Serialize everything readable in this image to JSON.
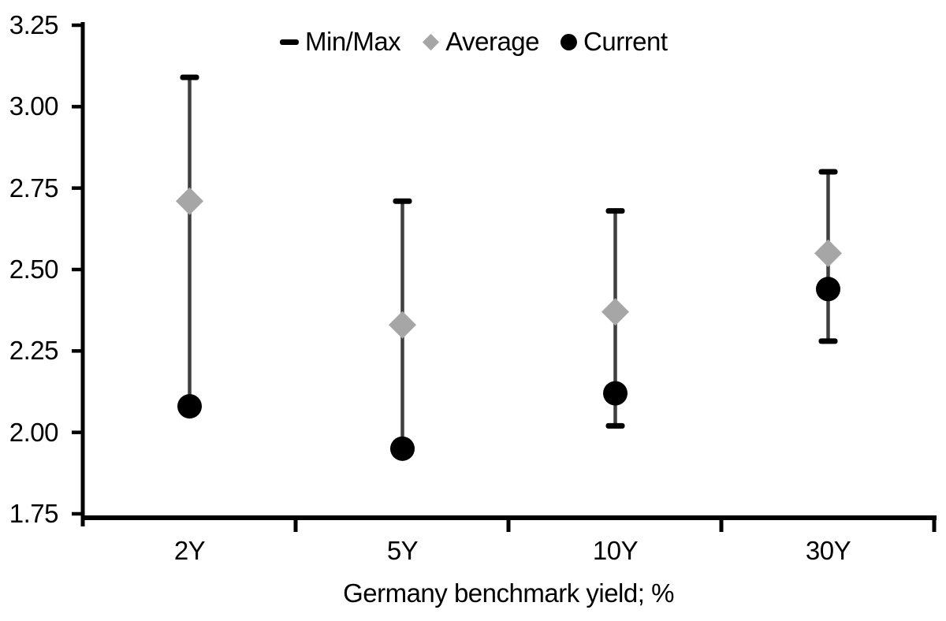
{
  "chart_data": {
    "type": "scatter",
    "subtype": "min-max-range",
    "title": "",
    "xlabel": "Germany benchmark yield; %",
    "ylabel": "",
    "ylim": [
      1.75,
      3.25
    ],
    "y_tick_step": 0.25,
    "y_ticks": [
      3.25,
      3.0,
      2.75,
      2.5,
      2.25,
      2.0,
      1.75
    ],
    "y_tick_labels": [
      "3.25",
      "3.00",
      "2.75",
      "2.50",
      "2.25",
      "2.00",
      "1.75"
    ],
    "grid": false,
    "categories": [
      "2Y",
      "5Y",
      "10Y",
      "30Y"
    ],
    "series": [
      {
        "name": "Min/Max",
        "type": "range",
        "min": [
          2.08,
          1.95,
          2.02,
          2.28
        ],
        "max": [
          3.09,
          2.71,
          2.68,
          2.8
        ]
      },
      {
        "name": "Average",
        "type": "point",
        "marker": "diamond",
        "values": [
          2.71,
          2.33,
          2.37,
          2.55
        ]
      },
      {
        "name": "Current",
        "type": "point",
        "marker": "circle",
        "values": [
          2.08,
          1.95,
          2.12,
          2.44
        ]
      }
    ],
    "legend": {
      "position": "top-center",
      "items": [
        {
          "label": "Min/Max",
          "marker": "dash"
        },
        {
          "label": "Average",
          "marker": "diamond"
        },
        {
          "label": "Current",
          "marker": "circle"
        }
      ]
    },
    "colors": {
      "range_line": "#3f3f3f",
      "cap": "#000000",
      "average": "#a6a6a6",
      "current": "#000000",
      "axis": "#000000",
      "text": "#000000",
      "background": "#ffffff"
    }
  }
}
